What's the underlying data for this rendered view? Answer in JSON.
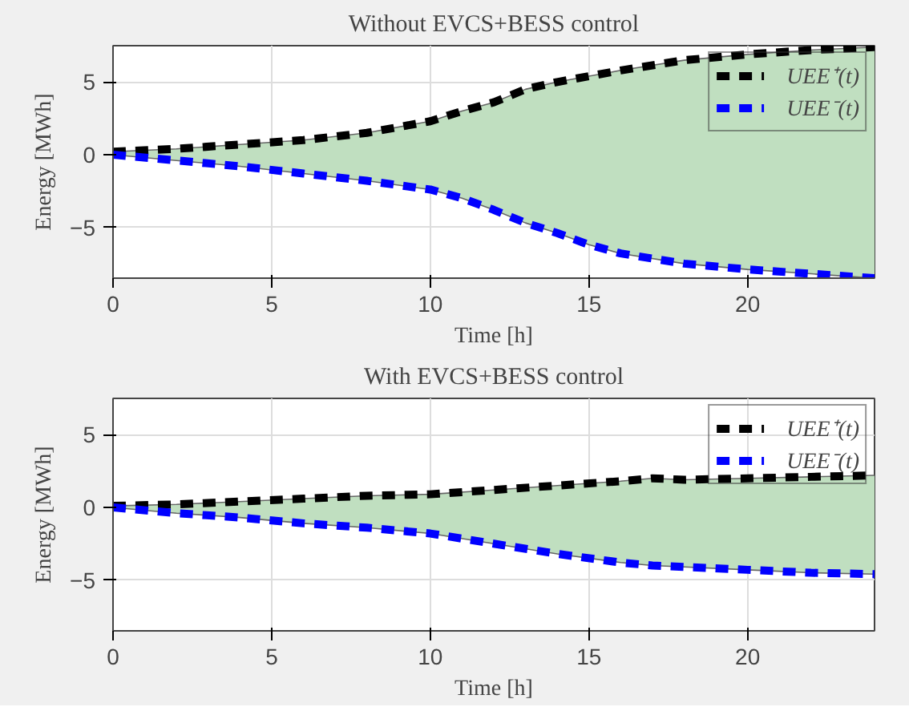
{
  "chart_data": [
    {
      "type": "line",
      "title": "Without EVCS+BESS control",
      "xlabel": "Time [h]",
      "ylabel": "Energy [MWh]",
      "x": [
        0,
        2,
        4,
        6,
        8,
        10,
        11,
        12,
        13,
        14,
        15,
        16,
        18,
        20,
        22,
        24
      ],
      "series": [
        {
          "name": "UEE⁺(t)",
          "color": "#000000",
          "values": [
            0.2,
            0.4,
            0.7,
            1.0,
            1.5,
            2.3,
            3.0,
            3.6,
            4.5,
            5.0,
            5.4,
            5.8,
            6.5,
            6.9,
            7.2,
            7.4
          ],
          "lower": [
            0,
            -0.4,
            -0.8,
            -1.3,
            -1.8,
            -2.4,
            -3.0,
            -3.8,
            -4.7,
            -5.4,
            -6.2,
            -6.8,
            -7.5,
            -7.9,
            -8.2,
            -8.5
          ],
          "upper": [
            0.2,
            0.4,
            0.7,
            1.0,
            1.5,
            2.3,
            3.0,
            3.6,
            4.5,
            5.0,
            5.4,
            5.8,
            6.5,
            6.9,
            7.2,
            7.4
          ]
        },
        {
          "name": "UEE⁻(t)",
          "color": "#0000ff",
          "values": [
            0,
            -0.4,
            -0.8,
            -1.3,
            -1.8,
            -2.4,
            -3.0,
            -3.8,
            -4.7,
            -5.4,
            -6.2,
            -6.8,
            -7.5,
            -7.9,
            -8.2,
            -8.5
          ]
        }
      ],
      "xlim": [
        0,
        24
      ],
      "xticks": [
        0,
        5,
        10,
        15,
        20
      ],
      "ylim": [
        -8.5,
        7.5
      ],
      "yticks": [
        -5,
        0,
        5
      ],
      "grid": true,
      "legend": "top right",
      "line_style": "dashed",
      "marker": "none"
    },
    {
      "type": "line",
      "title": "With EVCS+BESS control",
      "xlabel": "Time [h]",
      "ylabel": "Energy [MWh]",
      "x": [
        0,
        2,
        4,
        6,
        8,
        10,
        12,
        14,
        16,
        17,
        18,
        20,
        22,
        24
      ],
      "series": [
        {
          "name": "UEE⁺(t)",
          "color": "#000000",
          "values": [
            0.1,
            0.2,
            0.4,
            0.6,
            0.8,
            0.9,
            1.2,
            1.5,
            1.8,
            2.0,
            1.9,
            2.0,
            2.1,
            2.2
          ],
          "lower": [
            0,
            -0.4,
            -0.7,
            -1.1,
            -1.4,
            -1.8,
            -2.5,
            -3.2,
            -3.8,
            -4.0,
            -4.1,
            -4.3,
            -4.5,
            -4.6
          ],
          "upper": [
            0.1,
            0.2,
            0.4,
            0.6,
            0.8,
            0.9,
            1.2,
            1.5,
            1.8,
            2.0,
            1.9,
            2.0,
            2.1,
            2.2
          ]
        },
        {
          "name": "UEE⁻(t)",
          "color": "#0000ff",
          "values": [
            0,
            -0.4,
            -0.7,
            -1.1,
            -1.4,
            -1.8,
            -2.5,
            -3.2,
            -3.8,
            -4.0,
            -4.1,
            -4.3,
            -4.5,
            -4.6
          ]
        }
      ],
      "xlim": [
        0,
        24
      ],
      "xticks": [
        0,
        5,
        10,
        15,
        20
      ],
      "ylim": [
        -8.5,
        7.5
      ],
      "yticks": [
        -5,
        0,
        5
      ],
      "grid": true,
      "legend": "top right",
      "line_style": "dashed",
      "marker": "none"
    }
  ]
}
